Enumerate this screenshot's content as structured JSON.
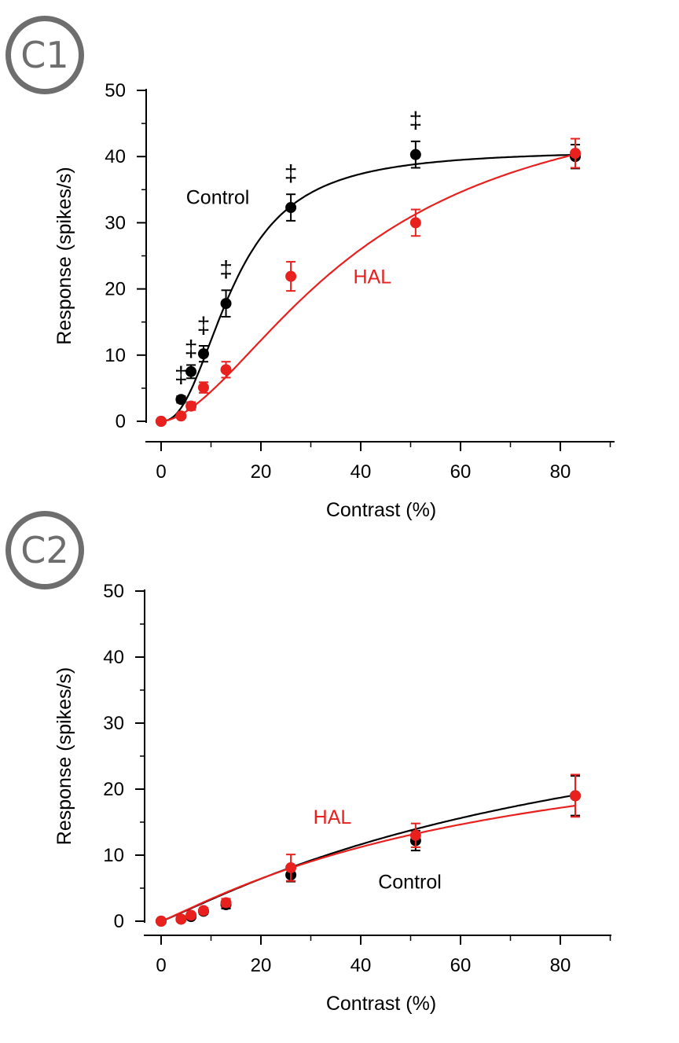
{
  "chart_data": [
    {
      "panel_label": "C1",
      "type": "scatter",
      "xlabel": "Contrast (%)",
      "ylabel": "Response (spikes/s)",
      "xlim": [
        -5,
        90
      ],
      "ylim": [
        0,
        50
      ],
      "xticks": [
        0,
        20,
        40,
        60,
        80
      ],
      "yticks": [
        0,
        10,
        20,
        30,
        40,
        50
      ],
      "series": [
        {
          "name": "Control",
          "color": "#000000",
          "x": [
            0,
            4,
            6,
            8.5,
            13,
            26,
            51,
            83
          ],
          "y": [
            0,
            3.3,
            7.5,
            10.2,
            17.8,
            32.3,
            40.3,
            40.0
          ],
          "err": [
            0.2,
            0.5,
            1.0,
            1.2,
            2.0,
            2.0,
            2.0,
            1.8
          ],
          "fit": {
            "rmax": 41,
            "c50": 14.5,
            "n": 2.3
          }
        },
        {
          "name": "HAL",
          "color": "#e8201e",
          "x": [
            0,
            4,
            6,
            8.5,
            13,
            26,
            51,
            83
          ],
          "y": [
            0,
            0.8,
            2.3,
            5.1,
            7.8,
            21.9,
            30.0,
            40.5
          ],
          "err": [
            0.2,
            0.3,
            0.6,
            0.8,
            1.2,
            2.2,
            2.0,
            2.2
          ],
          "fit": {
            "rmax": 52,
            "c50": 40,
            "n": 1.7
          }
        }
      ],
      "annotation_marks": [
        {
          "text": "‡",
          "x": 4,
          "y": 7
        },
        {
          "text": "‡",
          "x": 6,
          "y": 11
        },
        {
          "text": "‡",
          "x": 8.5,
          "y": 14.5
        },
        {
          "text": "‡",
          "x": 13,
          "y": 23
        },
        {
          "text": "‡",
          "x": 26,
          "y": 37.5
        },
        {
          "text": "‡",
          "x": 51,
          "y": 45.5
        }
      ],
      "series_labels": [
        {
          "text": "Control",
          "x": 5,
          "y": 33.8,
          "color": "#000000"
        },
        {
          "text": "HAL",
          "x": 38.5,
          "y": 21.8,
          "color": "#e8201e"
        }
      ]
    },
    {
      "panel_label": "C2",
      "type": "scatter",
      "xlabel": "Contrast (%)",
      "ylabel": "Response (spikes/s)",
      "xlim": [
        -5,
        90
      ],
      "ylim": [
        0,
        50
      ],
      "xticks": [
        0,
        20,
        40,
        60,
        80
      ],
      "yticks": [
        0,
        10,
        20,
        30,
        40,
        50
      ],
      "series": [
        {
          "name": "Control",
          "color": "#000000",
          "x": [
            0,
            4,
            6,
            8.5,
            13,
            26,
            51,
            83
          ],
          "y": [
            0,
            0.3,
            0.7,
            1.5,
            2.5,
            7.0,
            12.2,
            19.0
          ],
          "err": [
            0.2,
            0.3,
            0.3,
            0.4,
            0.6,
            1.0,
            1.5,
            3.0
          ],
          "fit": {
            "rmax": 40,
            "c50": 90,
            "n": 1.1
          }
        },
        {
          "name": "HAL",
          "color": "#e8201e",
          "x": [
            0,
            4,
            6,
            8.5,
            13,
            26,
            51,
            83
          ],
          "y": [
            0,
            0.3,
            0.9,
            1.6,
            2.8,
            8.1,
            13.0,
            19.0
          ],
          "err": [
            0.2,
            0.3,
            0.3,
            0.4,
            0.6,
            2.0,
            1.8,
            3.2
          ],
          "fit": {
            "rmax": 32,
            "c50": 70,
            "n": 1.1
          }
        }
      ],
      "annotation_marks": [],
      "series_labels": [
        {
          "text": "HAL",
          "x": 30.5,
          "y": 15.7,
          "color": "#e8201e"
        },
        {
          "text": "Control",
          "x": 43.5,
          "y": 5.9,
          "color": "#000000"
        }
      ]
    }
  ]
}
